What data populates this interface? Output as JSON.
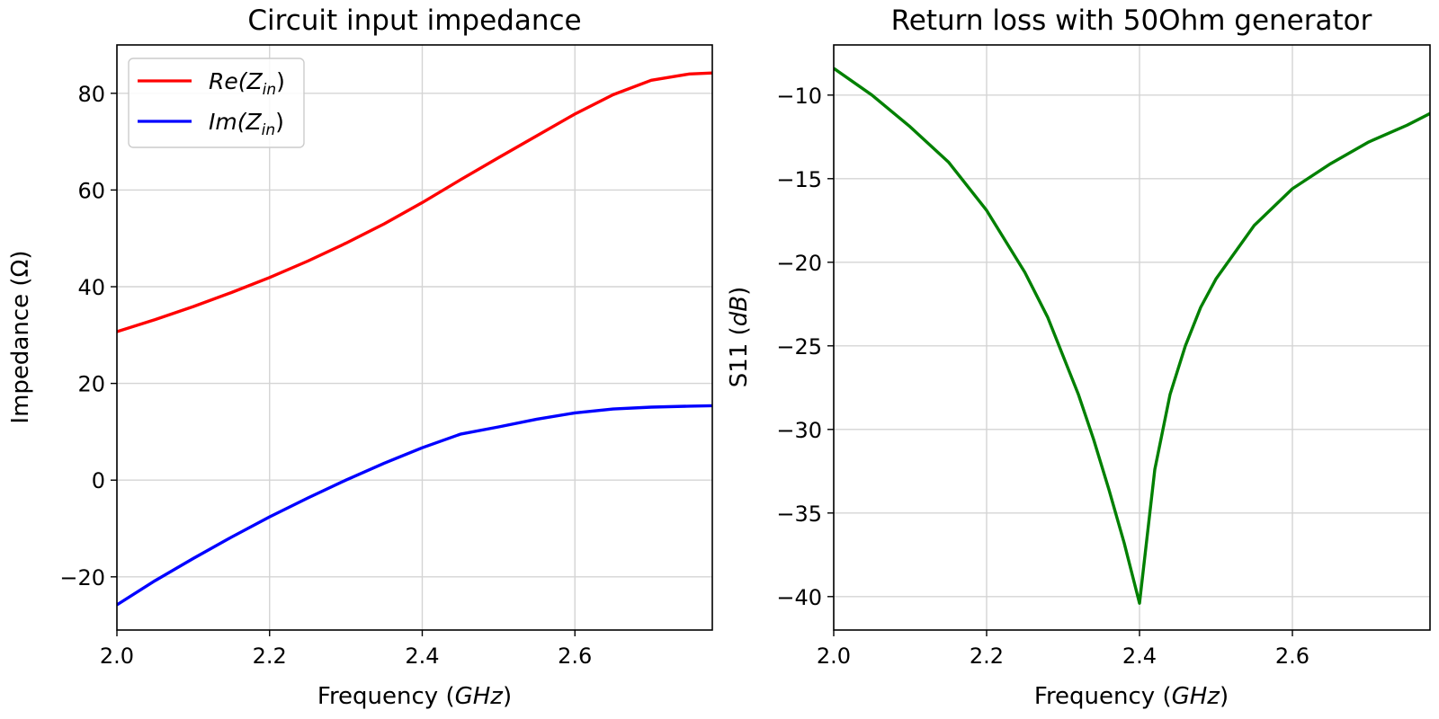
{
  "chart_data": [
    {
      "type": "line",
      "title": "Circuit input impedance",
      "xlabel": "Frequency (GHz)",
      "xlabel_parts": [
        "Frequency (",
        "GHz",
        ")"
      ],
      "ylabel": "Impedance (Ω)",
      "xlim": [
        2.0,
        2.78
      ],
      "ylim": [
        -31,
        90
      ],
      "xticks": [
        2.0,
        2.2,
        2.4,
        2.6
      ],
      "xtick_labels": [
        "2.0",
        "2.2",
        "2.4",
        "2.6"
      ],
      "yticks": [
        -20,
        0,
        20,
        40,
        60,
        80
      ],
      "ytick_labels": [
        "−20",
        "0",
        "20",
        "40",
        "60",
        "80"
      ],
      "grid": true,
      "legend": "top-left",
      "series": [
        {
          "name": "Re(Zin)",
          "label_main": "Re(Z",
          "label_sub": "in",
          "label_end": ")",
          "color": "#ff0000",
          "x": [
            2.0,
            2.05,
            2.1,
            2.15,
            2.2,
            2.25,
            2.3,
            2.35,
            2.4,
            2.45,
            2.5,
            2.55,
            2.6,
            2.65,
            2.7,
            2.75,
            2.78
          ],
          "y": [
            30.7,
            33.2,
            35.9,
            38.8,
            41.9,
            45.3,
            49.0,
            53.0,
            57.4,
            62.1,
            66.7,
            71.2,
            75.7,
            79.7,
            82.7,
            84.0,
            84.2
          ]
        },
        {
          "name": "Im(Zin)",
          "label_main": "Im(Z",
          "label_sub": "in",
          "label_end": ")",
          "color": "#0000ff",
          "x": [
            2.0,
            2.05,
            2.1,
            2.15,
            2.2,
            2.25,
            2.3,
            2.35,
            2.4,
            2.45,
            2.5,
            2.55,
            2.6,
            2.65,
            2.7,
            2.75,
            2.78
          ],
          "y": [
            -25.8,
            -20.8,
            -16.2,
            -11.8,
            -7.6,
            -3.7,
            0.0,
            3.5,
            6.7,
            9.5,
            11.0,
            12.6,
            13.9,
            14.7,
            15.1,
            15.3,
            15.4
          ]
        }
      ]
    },
    {
      "type": "line",
      "title": "Return loss with 50Ohm generator",
      "xlabel": "Frequency (GHz)",
      "xlabel_parts": [
        "Frequency (",
        "GHz",
        ")"
      ],
      "ylabel": "S11 (dB)",
      "ylabel_parts": [
        "S11 (",
        "dB",
        ")"
      ],
      "xlim": [
        2.0,
        2.78
      ],
      "ylim": [
        -42,
        -7
      ],
      "xticks": [
        2.0,
        2.2,
        2.4,
        2.6
      ],
      "xtick_labels": [
        "2.0",
        "2.2",
        "2.4",
        "2.6"
      ],
      "yticks": [
        -40,
        -35,
        -30,
        -25,
        -20,
        -15,
        -10
      ],
      "ytick_labels": [
        "−40",
        "−35",
        "−30",
        "−25",
        "−20",
        "−15",
        "−10"
      ],
      "grid": true,
      "series": [
        {
          "color": "#008000",
          "x": [
            2.0,
            2.05,
            2.1,
            2.15,
            2.2,
            2.25,
            2.28,
            2.3,
            2.32,
            2.34,
            2.36,
            2.38,
            2.4,
            2.42,
            2.44,
            2.46,
            2.48,
            2.5,
            2.55,
            2.6,
            2.65,
            2.7,
            2.75,
            2.78
          ],
          "y": [
            -8.4,
            -10.0,
            -11.9,
            -14.0,
            -16.9,
            -20.6,
            -23.3,
            -25.6,
            -27.9,
            -30.6,
            -33.6,
            -36.8,
            -40.4,
            -32.4,
            -27.9,
            -25.0,
            -22.7,
            -21.0,
            -17.8,
            -15.6,
            -14.1,
            -12.8,
            -11.8,
            -11.1
          ]
        }
      ]
    }
  ]
}
